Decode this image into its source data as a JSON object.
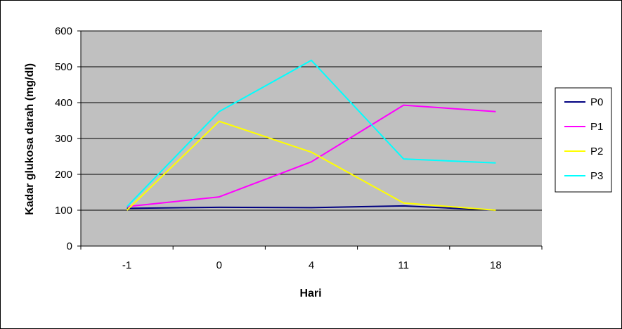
{
  "chart_data": {
    "type": "line",
    "title": "",
    "xlabel": "Hari",
    "ylabel": "Kadar glukosa darah (mg/dl)",
    "categories": [
      "-1",
      "0",
      "4",
      "11",
      "18"
    ],
    "ylim": [
      0,
      600
    ],
    "yticks": [
      0,
      100,
      200,
      300,
      400,
      500,
      600
    ],
    "grid": true,
    "legend_position": "right",
    "plot_background": "#c0c0c0",
    "series": [
      {
        "name": "P0",
        "color": "#000080",
        "values": [
          105,
          108,
          107,
          112,
          100
        ]
      },
      {
        "name": "P1",
        "color": "#ff00ff",
        "values": [
          110,
          137,
          235,
          393,
          375
        ]
      },
      {
        "name": "P2",
        "color": "#ffff00",
        "values": [
          100,
          348,
          262,
          120,
          100
        ]
      },
      {
        "name": "P3",
        "color": "#00ffff",
        "values": [
          110,
          375,
          518,
          243,
          232
        ]
      }
    ]
  }
}
